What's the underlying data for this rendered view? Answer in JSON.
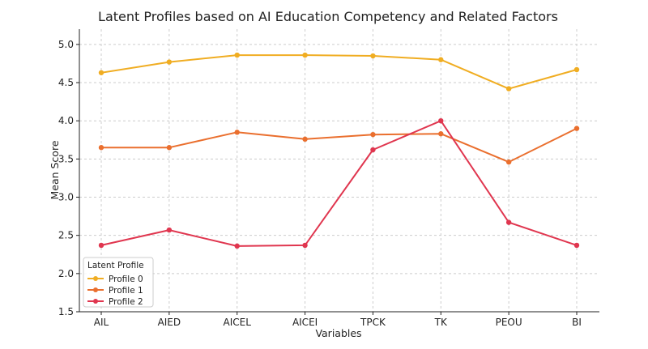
{
  "chart_data": {
    "type": "line",
    "title": "Latent Profiles based on AI Education Competency and Related Factors",
    "xlabel": "Variables",
    "ylabel": "Mean Score",
    "categories": [
      "AIL",
      "AIED",
      "AICEL",
      "AICEI",
      "TPCK",
      "TK",
      "PEOU",
      "BI"
    ],
    "ylim": [
      1.5,
      5.2
    ],
    "yticks": [
      1.5,
      2.0,
      2.5,
      3.0,
      3.5,
      4.0,
      4.5,
      5.0
    ],
    "ytick_labels": [
      "1.5",
      "2.0",
      "2.5",
      "3.0",
      "3.5",
      "4.0",
      "4.5",
      "5.0"
    ],
    "grid": true,
    "legend": {
      "title": "Latent Profile",
      "position": "lower-left"
    },
    "series": [
      {
        "name": "Profile 0",
        "color": "#f0ad22",
        "values": [
          4.63,
          4.77,
          4.86,
          4.86,
          4.85,
          4.8,
          4.42,
          4.67
        ]
      },
      {
        "name": "Profile 1",
        "color": "#ea6f2e",
        "values": [
          3.65,
          3.65,
          3.85,
          3.76,
          3.82,
          3.83,
          3.46,
          3.9
        ]
      },
      {
        "name": "Profile 2",
        "color": "#e0364f",
        "values": [
          2.37,
          2.57,
          2.36,
          2.37,
          3.62,
          4.0,
          2.67,
          2.37
        ]
      }
    ]
  }
}
